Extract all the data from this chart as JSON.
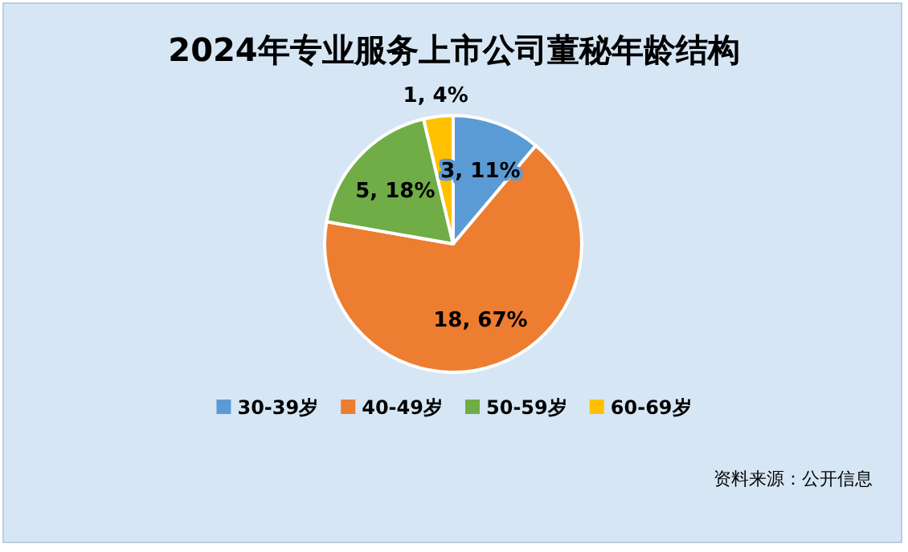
{
  "chart_data": {
    "type": "pie",
    "title": "2024年专业服务上市公司董秘年龄结构",
    "categories": [
      "30-39岁",
      "40-49岁",
      "50-59岁",
      "60-69岁"
    ],
    "values": [
      3,
      18,
      5,
      1
    ],
    "colors": [
      "#5b9bd5",
      "#ed7d31",
      "#70ad47",
      "#ffc000"
    ],
    "value_labels": [
      "3, 11%",
      "18, 67%",
      "5, 18%",
      "1, 4%"
    ],
    "legend": "bottom",
    "annotations": [
      "资料来源：公开信息"
    ]
  }
}
